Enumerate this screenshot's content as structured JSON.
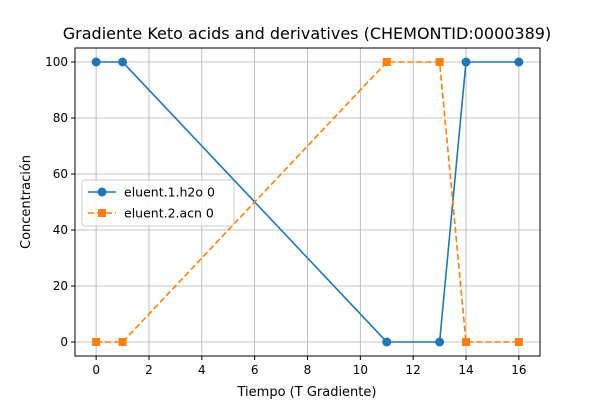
{
  "chart_data": {
    "type": "line",
    "title": "Gradiente Keto acids and derivatives (CHEMONTID:0000389)",
    "xlabel": "Tiempo (T Gradiente)",
    "ylabel": "Concentración",
    "xlim": [
      -0.8,
      16.8
    ],
    "ylim": [
      -5,
      105
    ],
    "xticks": [
      0,
      2,
      4,
      6,
      8,
      10,
      12,
      14,
      16
    ],
    "yticks": [
      0,
      20,
      40,
      60,
      80,
      100
    ],
    "grid": true,
    "legend_position": "center-left",
    "series": [
      {
        "name": "eluent.1.h2o 0",
        "color": "#1f77b4",
        "line_style": "solid",
        "marker": "circle",
        "x": [
          0,
          1,
          11,
          13,
          14,
          16
        ],
        "y": [
          100,
          100,
          0,
          0,
          100,
          100
        ]
      },
      {
        "name": "eluent.2.acn 0",
        "color": "#ff7f0e",
        "line_style": "dashed",
        "marker": "square",
        "x": [
          0,
          1,
          11,
          13,
          14,
          16
        ],
        "y": [
          0,
          0,
          100,
          100,
          0,
          0
        ]
      }
    ]
  }
}
